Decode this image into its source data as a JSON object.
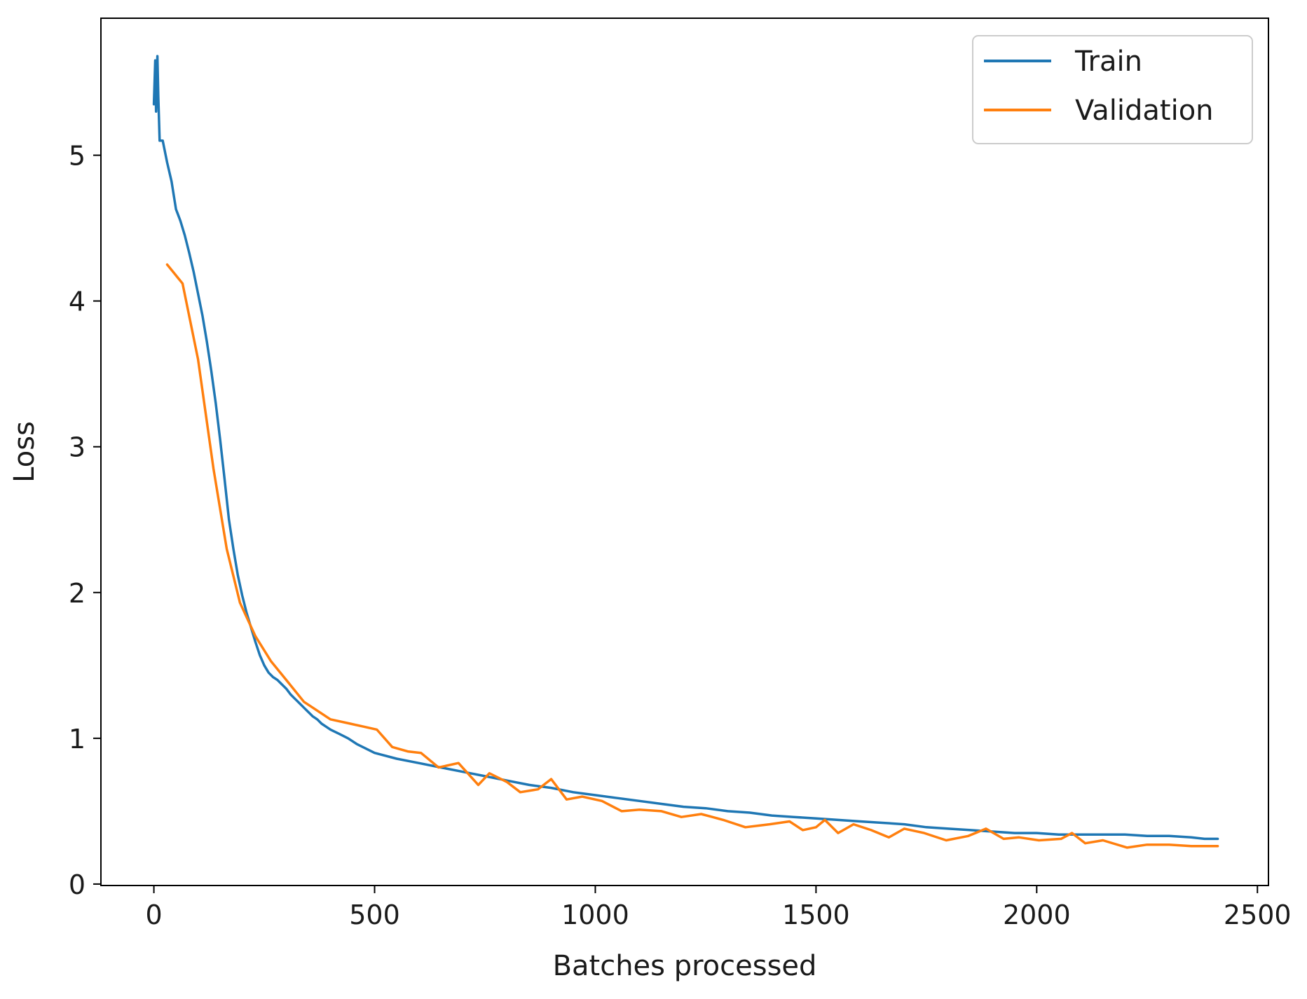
{
  "chart_data": {
    "type": "line",
    "xlabel": "Batches processed",
    "ylabel": "Loss",
    "xlim": [
      -120,
      2525
    ],
    "ylim": [
      -0.01,
      5.94
    ],
    "xticks": [
      0,
      500,
      1000,
      1500,
      2000,
      2500
    ],
    "xtick_labels": [
      "0",
      "500",
      "1000",
      "1500",
      "2000",
      "2500"
    ],
    "yticks": [
      0,
      1,
      2,
      3,
      4,
      5
    ],
    "ytick_labels": [
      "0",
      "1",
      "2",
      "3",
      "4",
      "5"
    ],
    "grid": false,
    "legend_position": "top-right",
    "series": [
      {
        "name": "Train",
        "color": "#1f77b4",
        "x": [
          0,
          3,
          5,
          8,
          10,
          13,
          20,
          30,
          40,
          50,
          60,
          70,
          80,
          90,
          100,
          110,
          120,
          130,
          140,
          150,
          160,
          170,
          180,
          190,
          200,
          210,
          220,
          230,
          240,
          250,
          260,
          270,
          280,
          290,
          300,
          310,
          320,
          330,
          340,
          350,
          360,
          370,
          380,
          390,
          400,
          420,
          440,
          460,
          480,
          500,
          550,
          600,
          650,
          700,
          750,
          800,
          850,
          900,
          950,
          1000,
          1050,
          1100,
          1150,
          1200,
          1250,
          1300,
          1350,
          1400,
          1450,
          1500,
          1550,
          1600,
          1650,
          1700,
          1750,
          1800,
          1850,
          1900,
          1950,
          2000,
          2050,
          2100,
          2150,
          2200,
          2250,
          2300,
          2350,
          2380,
          2400,
          2410
        ],
        "values": [
          5.35,
          5.65,
          5.3,
          5.68,
          5.4,
          5.1,
          5.1,
          4.95,
          4.82,
          4.63,
          4.55,
          4.45,
          4.33,
          4.2,
          4.05,
          3.9,
          3.72,
          3.52,
          3.3,
          3.05,
          2.78,
          2.5,
          2.3,
          2.12,
          1.98,
          1.86,
          1.76,
          1.66,
          1.57,
          1.5,
          1.45,
          1.42,
          1.4,
          1.37,
          1.34,
          1.3,
          1.27,
          1.24,
          1.21,
          1.18,
          1.15,
          1.13,
          1.1,
          1.08,
          1.06,
          1.03,
          1.0,
          0.96,
          0.93,
          0.9,
          0.86,
          0.83,
          0.8,
          0.77,
          0.74,
          0.71,
          0.68,
          0.66,
          0.63,
          0.61,
          0.59,
          0.57,
          0.55,
          0.53,
          0.52,
          0.5,
          0.49,
          0.47,
          0.46,
          0.45,
          0.44,
          0.43,
          0.42,
          0.41,
          0.39,
          0.38,
          0.37,
          0.36,
          0.35,
          0.35,
          0.34,
          0.34,
          0.34,
          0.34,
          0.33,
          0.33,
          0.32,
          0.31,
          0.31,
          0.31
        ]
      },
      {
        "name": "Validation",
        "color": "#ff7f0e",
        "x": [
          30,
          65,
          100,
          135,
          165,
          195,
          230,
          265,
          300,
          340,
          400,
          445,
          475,
          505,
          540,
          575,
          605,
          645,
          690,
          705,
          735,
          760,
          800,
          830,
          870,
          900,
          935,
          970,
          1015,
          1060,
          1100,
          1150,
          1195,
          1240,
          1290,
          1340,
          1395,
          1440,
          1470,
          1500,
          1520,
          1550,
          1585,
          1625,
          1665,
          1700,
          1745,
          1795,
          1845,
          1885,
          1925,
          1960,
          2005,
          2055,
          2080,
          2110,
          2150,
          2205,
          2250,
          2300,
          2350,
          2410
        ],
        "values": [
          4.25,
          4.12,
          3.6,
          2.85,
          2.3,
          1.93,
          1.7,
          1.53,
          1.4,
          1.25,
          1.13,
          1.1,
          1.08,
          1.06,
          0.94,
          0.91,
          0.9,
          0.8,
          0.83,
          0.78,
          0.68,
          0.76,
          0.7,
          0.63,
          0.65,
          0.72,
          0.58,
          0.6,
          0.57,
          0.5,
          0.51,
          0.5,
          0.46,
          0.48,
          0.44,
          0.39,
          0.41,
          0.43,
          0.37,
          0.39,
          0.44,
          0.35,
          0.41,
          0.37,
          0.32,
          0.38,
          0.35,
          0.3,
          0.33,
          0.38,
          0.31,
          0.32,
          0.3,
          0.31,
          0.35,
          0.28,
          0.3,
          0.25,
          0.27,
          0.27,
          0.26,
          0.26
        ]
      }
    ]
  }
}
